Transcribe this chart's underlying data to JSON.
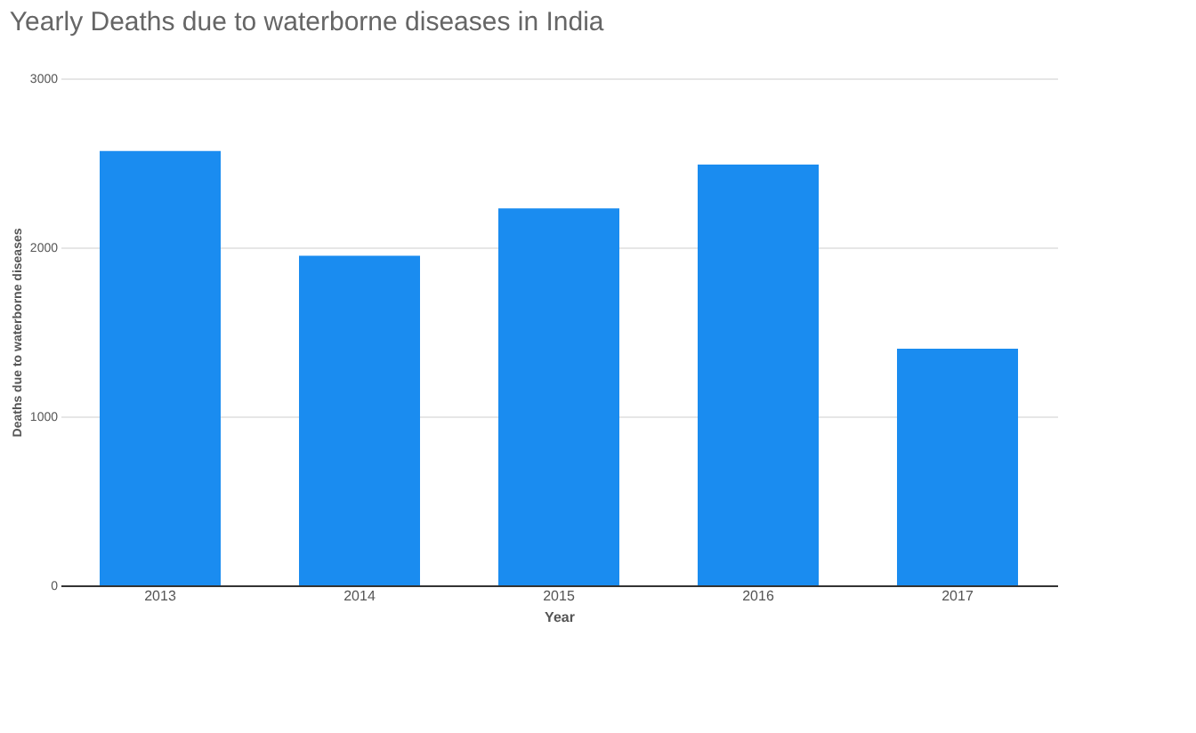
{
  "chart_data": {
    "type": "bar",
    "title": "Yearly Deaths due to waterborne diseases in India",
    "xlabel": "Year",
    "ylabel": "Deaths due to waterborne diseases",
    "categories": [
      "2013",
      "2014",
      "2015",
      "2016",
      "2017"
    ],
    "values": [
      2570,
      1950,
      2230,
      2490,
      1400
    ],
    "color": "#1a8cf0",
    "ylim": [
      0,
      3000
    ],
    "yticks": [
      0,
      1000,
      2000,
      3000
    ],
    "grid": "y"
  }
}
